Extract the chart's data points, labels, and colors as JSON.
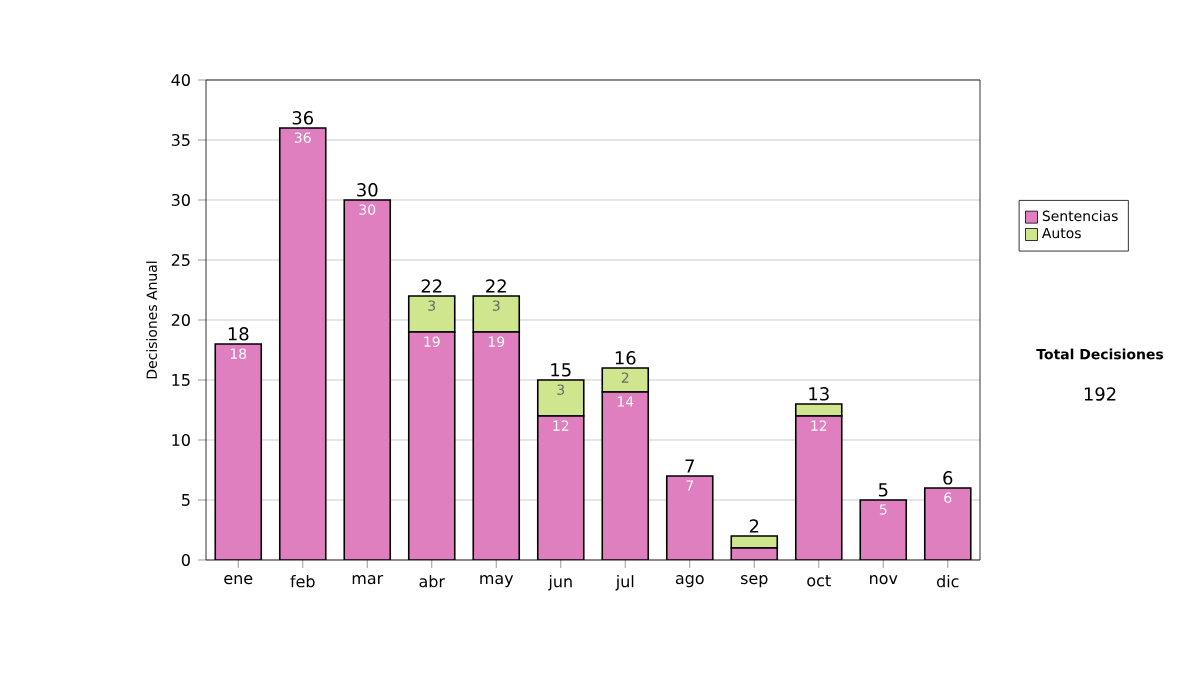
{
  "chart_data": {
    "type": "bar",
    "stacked": true,
    "ylabel": "Decisiones Anual",
    "categories": [
      "ene",
      "feb",
      "mar",
      "abr",
      "may",
      "jun",
      "jul",
      "ago",
      "sep",
      "oct",
      "nov",
      "dic"
    ],
    "series": [
      {
        "name": "Sentencias",
        "color": "#df7fc0",
        "values": [
          18,
          36,
          30,
          19,
          19,
          12,
          14,
          7,
          1,
          12,
          5,
          6
        ],
        "value_labels": [
          "18",
          "36",
          "30",
          "19",
          "19",
          "12",
          "14",
          "7",
          null,
          "12",
          "5",
          "6"
        ]
      },
      {
        "name": "Autos",
        "color": "#cfe68f",
        "values": [
          0,
          0,
          0,
          3,
          3,
          3,
          2,
          0,
          1,
          1,
          0,
          0
        ],
        "value_labels": [
          null,
          null,
          null,
          "3",
          "3",
          "3",
          "2",
          null,
          null,
          null,
          null,
          null
        ]
      }
    ],
    "totals": [
      "18",
      "36",
      "30",
      "22",
      "22",
      "15",
      "16",
      "7",
      "2",
      "13",
      "5",
      "6"
    ],
    "ylim": [
      0,
      40
    ],
    "yticks": [
      0,
      5,
      10,
      15,
      20,
      25,
      30,
      35,
      40
    ],
    "grid": "y",
    "legend": "right",
    "annotations": [
      "Total Decisiones",
      "192"
    ]
  }
}
